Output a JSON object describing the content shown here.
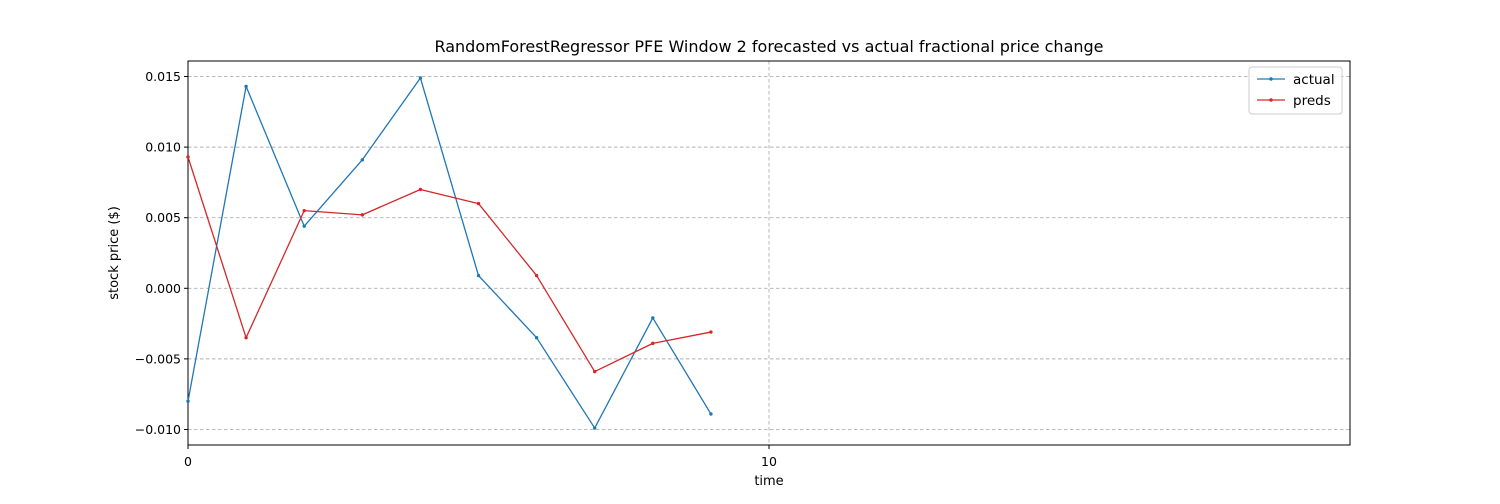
{
  "chart_data": {
    "type": "line",
    "title": "RandomForestRegressor PFE Window 2 forecasted vs actual fractional price change",
    "xlabel": "time",
    "ylabel": "stock price ($)",
    "xlim": [
      0,
      20
    ],
    "ylim": [
      -0.0111,
      0.0161
    ],
    "x_ticks": [
      0,
      10
    ],
    "x_tick_labels": [
      "0",
      "10"
    ],
    "y_ticks": [
      -0.01,
      -0.005,
      0.0,
      0.005,
      0.01,
      0.015
    ],
    "y_tick_labels": [
      "−0.010",
      "−0.005",
      "0.000",
      "0.005",
      "0.010",
      "0.015"
    ],
    "grid": true,
    "legend_position": "top-right",
    "x": [
      0,
      1,
      2,
      3,
      4,
      5,
      6,
      7,
      8,
      9
    ],
    "series": [
      {
        "name": "actual",
        "color": "#1f77b4",
        "values": [
          -0.008,
          0.0143,
          0.0044,
          0.0091,
          0.0149,
          0.0009,
          -0.0035,
          -0.0099,
          -0.0021,
          -0.0089
        ]
      },
      {
        "name": "preds",
        "color": "#d62728",
        "values": [
          0.0093,
          -0.0035,
          0.0055,
          0.0052,
          0.007,
          0.006,
          0.0009,
          -0.0059,
          -0.0039,
          -0.0031
        ]
      }
    ]
  }
}
